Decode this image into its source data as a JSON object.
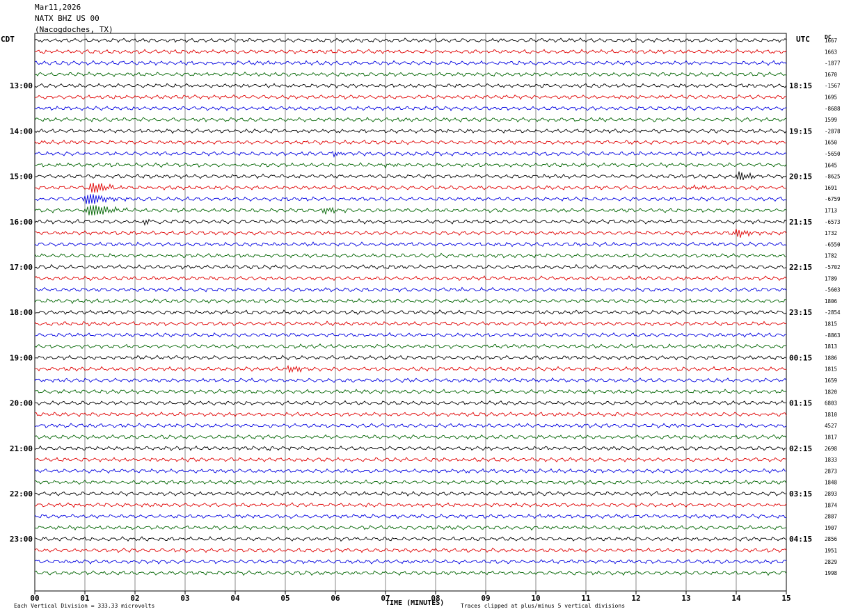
{
  "header": {
    "date": "Mar11,2026",
    "station": "NATX BHZ US 00",
    "location": "(Nacogdoches, TX)"
  },
  "left_zone": "CDT",
  "right_zone": "UTC",
  "dc_label": "DC",
  "colors": {
    "black": "#000000",
    "red": "#e00000",
    "blue": "#0000e0",
    "green": "#006400",
    "grid": "#000000"
  },
  "chart_data": {
    "type": "line",
    "title": "",
    "xlabel": "TIME (MINUTES)",
    "ylabel": "",
    "xlim": [
      0,
      15
    ],
    "x_ticks": [
      "00",
      "01",
      "02",
      "03",
      "04",
      "05",
      "06",
      "07",
      "08",
      "09",
      "10",
      "11",
      "12",
      "13",
      "14",
      "15"
    ],
    "trace_color_cycle": [
      "black",
      "red",
      "blue",
      "green"
    ],
    "minutes_per_trace": 15,
    "trace_count": 48,
    "left_hour_labels": [
      "13:00",
      "14:00",
      "15:00",
      "16:00",
      "17:00",
      "18:00",
      "19:00",
      "20:00",
      "21:00",
      "22:00",
      "23:00"
    ],
    "right_hour_labels": [
      "18:15",
      "19:15",
      "20:15",
      "21:15",
      "22:15",
      "23:15",
      "00:15",
      "01:15",
      "02:15",
      "03:15",
      "04:15"
    ],
    "hour_label_first_trace": 4,
    "dc_offsets": [
      "1667",
      "1663",
      "-1877",
      "1670",
      "-1567",
      "1695",
      "-8688",
      "1599",
      "-2878",
      "1650",
      "-5650",
      "1645",
      "-8625",
      "1691",
      "-6759",
      "1713",
      "-6573",
      "1732",
      "-6550",
      "1782",
      "-5702",
      "1789",
      "-5603",
      "1806",
      "-2854",
      "1815",
      "-8863",
      "1813",
      "1886",
      "1815",
      "1659",
      "1820",
      "6803",
      "1810",
      "4527",
      "1817",
      "2698",
      "1833",
      "2873",
      "1848",
      "2893",
      "1874",
      "2887",
      "1907",
      "2856",
      "1951",
      "2829",
      "1998"
    ],
    "events": [
      {
        "trace": 13,
        "minute": 1.15,
        "amp": 2.8
      },
      {
        "trace": 14,
        "minute": 1.05,
        "amp": 3.4
      },
      {
        "trace": 15,
        "minute": 1.1,
        "amp": 4.5
      },
      {
        "trace": 16,
        "minute": 2.2,
        "amp": 3.2
      },
      {
        "trace": 15,
        "minute": 5.8,
        "amp": 1.5
      },
      {
        "trace": 12,
        "minute": 14.05,
        "amp": 2.0
      },
      {
        "trace": 13,
        "minute": 13.05,
        "amp": 2.0
      },
      {
        "trace": 17,
        "minute": 14.0,
        "amp": 1.8
      },
      {
        "trace": 29,
        "minute": 5.1,
        "amp": 1.4
      },
      {
        "trace": 36,
        "minute": 4.7,
        "amp": 1.0
      },
      {
        "trace": 38,
        "minute": 8.6,
        "amp": 1.0
      },
      {
        "trace": 10,
        "minute": 6.0,
        "amp": 1.0
      },
      {
        "trace": 11,
        "minute": 6.9,
        "amp": 1.0
      }
    ],
    "annotations": [
      "Each Vertical Division =  333.33 microvolts",
      "Traces clipped at plus/minus 5 vertical divisions"
    ]
  },
  "footer": {
    "division_note": "Each Vertical Division =  333.33 microvolts",
    "clip_note": "Traces clipped at plus/minus 5 vertical divisions"
  }
}
